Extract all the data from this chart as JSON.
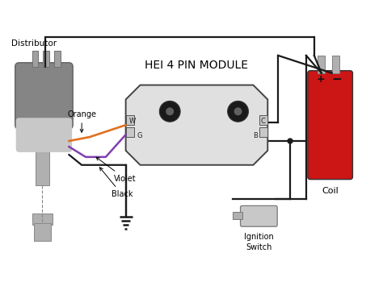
{
  "title": "HEI 4 PIN MODULE",
  "bg_color": "#ffffff",
  "text_color": "#000000",
  "wire_black": "#1a1a1a",
  "wire_orange": "#e07020",
  "wire_violet": "#8040b0",
  "distributor_dark": "#858585",
  "distributor_light": "#c8c8c8",
  "distributor_stem": "#b0b0b0",
  "coil_color": "#cc1515",
  "module_fill": "#e0e0e0",
  "module_stroke": "#444444",
  "label_distributor": "Distributor",
  "label_coil": "Coil",
  "label_ignition": "Ignition\nSwitch",
  "label_orange": "Orange",
  "label_violet": "Violet",
  "label_black": "Black"
}
